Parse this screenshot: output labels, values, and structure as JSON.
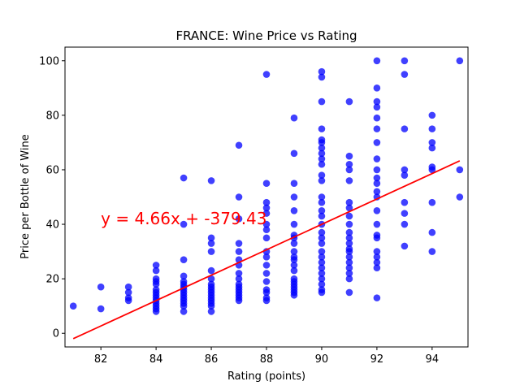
{
  "chart_data": {
    "type": "scatter",
    "title": "FRANCE: Wine Price vs Rating",
    "xlabel": "Rating (points)",
    "ylabel": "Price per Bottle of Wine",
    "xlim": [
      80.7,
      95.3
    ],
    "ylim": [
      -5,
      105
    ],
    "xticks": [
      82,
      84,
      86,
      88,
      90,
      92,
      94
    ],
    "yticks": [
      0,
      20,
      40,
      60,
      80,
      100
    ],
    "grid": false,
    "colors": {
      "points": "#0000ff",
      "trendline": "#ff0000",
      "annotation": "#ff0000"
    },
    "annotation": {
      "text": "y = 4.66x + -379.43",
      "x": 82,
      "y": 40
    },
    "trendline": {
      "slope": 4.66,
      "intercept": -379.43,
      "x_range": [
        81,
        95
      ]
    },
    "series": [
      {
        "points": [
          [
            81,
            10
          ],
          [
            82,
            17
          ],
          [
            82,
            9
          ],
          [
            83,
            17
          ],
          [
            83,
            15
          ],
          [
            83,
            13
          ],
          [
            83,
            12
          ],
          [
            84,
            25
          ],
          [
            84,
            23
          ],
          [
            84,
            20
          ],
          [
            84,
            19
          ],
          [
            84,
            18
          ],
          [
            84,
            16
          ],
          [
            84,
            15
          ],
          [
            84,
            14
          ],
          [
            84,
            13
          ],
          [
            84,
            12
          ],
          [
            84,
            11
          ],
          [
            84,
            10
          ],
          [
            84,
            9
          ],
          [
            84,
            8
          ],
          [
            85,
            57
          ],
          [
            85,
            40
          ],
          [
            85,
            27
          ],
          [
            85,
            21
          ],
          [
            85,
            19
          ],
          [
            85,
            18
          ],
          [
            85,
            17
          ],
          [
            85,
            16
          ],
          [
            85,
            15
          ],
          [
            85,
            14
          ],
          [
            85,
            13
          ],
          [
            85,
            12
          ],
          [
            85,
            11
          ],
          [
            85,
            10
          ],
          [
            85,
            8
          ],
          [
            86,
            56
          ],
          [
            86,
            35
          ],
          [
            86,
            33
          ],
          [
            86,
            30
          ],
          [
            86,
            23
          ],
          [
            86,
            20
          ],
          [
            86,
            18
          ],
          [
            86,
            17
          ],
          [
            86,
            16
          ],
          [
            86,
            15
          ],
          [
            86,
            14
          ],
          [
            86,
            13
          ],
          [
            86,
            12
          ],
          [
            86,
            11
          ],
          [
            86,
            10
          ],
          [
            86,
            8
          ],
          [
            87,
            69
          ],
          [
            87,
            50
          ],
          [
            87,
            42
          ],
          [
            87,
            33
          ],
          [
            87,
            30
          ],
          [
            87,
            27
          ],
          [
            87,
            25
          ],
          [
            87,
            22
          ],
          [
            87,
            20
          ],
          [
            87,
            18
          ],
          [
            87,
            17
          ],
          [
            87,
            16
          ],
          [
            87,
            15
          ],
          [
            87,
            14
          ],
          [
            87,
            13
          ],
          [
            87,
            12
          ],
          [
            88,
            95
          ],
          [
            88,
            55
          ],
          [
            88,
            48
          ],
          [
            88,
            46
          ],
          [
            88,
            44
          ],
          [
            88,
            40
          ],
          [
            88,
            38
          ],
          [
            88,
            35
          ],
          [
            88,
            30
          ],
          [
            88,
            28
          ],
          [
            88,
            25
          ],
          [
            88,
            22
          ],
          [
            88,
            19
          ],
          [
            88,
            16
          ],
          [
            88,
            15
          ],
          [
            88,
            13
          ],
          [
            88,
            12
          ],
          [
            89,
            79
          ],
          [
            89,
            66
          ],
          [
            89,
            55
          ],
          [
            89,
            50
          ],
          [
            89,
            45
          ],
          [
            89,
            40
          ],
          [
            89,
            36
          ],
          [
            89,
            35
          ],
          [
            89,
            33
          ],
          [
            89,
            30
          ],
          [
            89,
            28
          ],
          [
            89,
            27
          ],
          [
            89,
            25
          ],
          [
            89,
            23
          ],
          [
            89,
            20
          ],
          [
            89,
            19
          ],
          [
            89,
            18
          ],
          [
            89,
            17
          ],
          [
            89,
            16
          ],
          [
            89,
            15
          ],
          [
            89,
            14
          ],
          [
            90,
            96
          ],
          [
            90,
            94
          ],
          [
            90,
            85
          ],
          [
            90,
            75
          ],
          [
            90,
            71
          ],
          [
            90,
            70
          ],
          [
            90,
            68
          ],
          [
            90,
            66
          ],
          [
            90,
            64
          ],
          [
            90,
            62
          ],
          [
            90,
            58
          ],
          [
            90,
            56
          ],
          [
            90,
            50
          ],
          [
            90,
            48
          ],
          [
            90,
            45
          ],
          [
            90,
            43
          ],
          [
            90,
            40
          ],
          [
            90,
            37
          ],
          [
            90,
            35
          ],
          [
            90,
            33
          ],
          [
            90,
            30
          ],
          [
            90,
            28
          ],
          [
            90,
            26
          ],
          [
            90,
            24
          ],
          [
            90,
            22
          ],
          [
            90,
            20
          ],
          [
            90,
            18
          ],
          [
            90,
            16
          ],
          [
            90,
            15
          ],
          [
            91,
            85
          ],
          [
            91,
            65
          ],
          [
            91,
            62
          ],
          [
            91,
            60
          ],
          [
            91,
            56
          ],
          [
            91,
            48
          ],
          [
            91,
            46
          ],
          [
            91,
            43
          ],
          [
            91,
            40
          ],
          [
            91,
            37
          ],
          [
            91,
            35
          ],
          [
            91,
            33
          ],
          [
            91,
            31
          ],
          [
            91,
            30
          ],
          [
            91,
            28
          ],
          [
            91,
            26
          ],
          [
            91,
            24
          ],
          [
            91,
            22
          ],
          [
            91,
            20
          ],
          [
            91,
            15
          ],
          [
            92,
            100
          ],
          [
            92,
            90
          ],
          [
            92,
            85
          ],
          [
            92,
            83
          ],
          [
            92,
            79
          ],
          [
            92,
            75
          ],
          [
            92,
            70
          ],
          [
            92,
            64
          ],
          [
            92,
            60
          ],
          [
            92,
            57
          ],
          [
            92,
            55
          ],
          [
            92,
            52
          ],
          [
            92,
            50
          ],
          [
            92,
            45
          ],
          [
            92,
            40
          ],
          [
            92,
            36
          ],
          [
            92,
            35
          ],
          [
            92,
            30
          ],
          [
            92,
            28
          ],
          [
            92,
            26
          ],
          [
            92,
            24
          ],
          [
            92,
            13
          ],
          [
            93,
            100
          ],
          [
            93,
            95
          ],
          [
            93,
            75
          ],
          [
            93,
            60
          ],
          [
            93,
            58
          ],
          [
            93,
            48
          ],
          [
            93,
            44
          ],
          [
            93,
            40
          ],
          [
            93,
            32
          ],
          [
            94,
            80
          ],
          [
            94,
            75
          ],
          [
            94,
            70
          ],
          [
            94,
            68
          ],
          [
            94,
            61
          ],
          [
            94,
            60
          ],
          [
            94,
            48
          ],
          [
            94,
            37
          ],
          [
            94,
            30
          ],
          [
            95,
            100
          ],
          [
            95,
            60
          ],
          [
            95,
            50
          ]
        ]
      }
    ]
  }
}
